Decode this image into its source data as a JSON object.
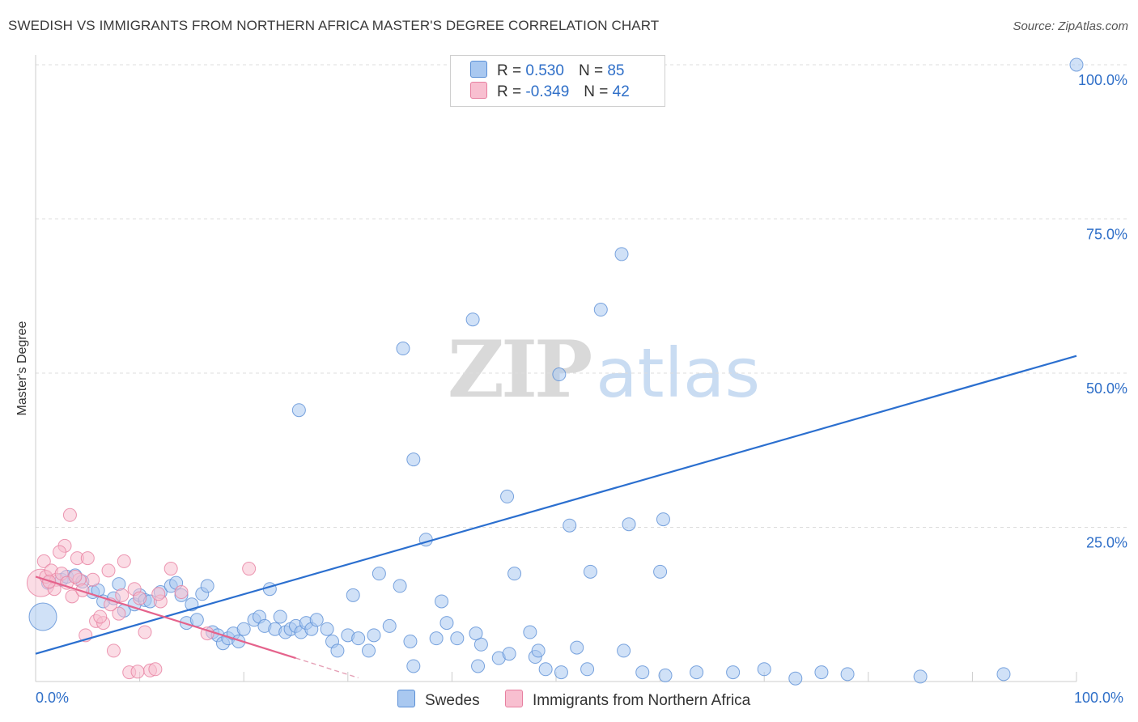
{
  "title": "SWEDISH VS IMMIGRANTS FROM NORTHERN AFRICA MASTER'S DEGREE CORRELATION CHART",
  "source": "Source: ZipAtlas.com",
  "watermark": {
    "zip": "ZIP",
    "atlas": "atlas"
  },
  "legend": {
    "r_label": "R =",
    "n_label": "N =",
    "series": [
      {
        "name": "Swedes",
        "r": "0.530",
        "n": "85",
        "color": "#a9c8f0",
        "edge": "#5b8fd6"
      },
      {
        "name": "Immigrants from Northern Africa",
        "r": "-0.349",
        "n": "42",
        "color": "#f8bfd0",
        "edge": "#e77fa0"
      }
    ]
  },
  "chart_data": {
    "type": "scatter",
    "title": "SWEDISH VS IMMIGRANTS FROM NORTHERN AFRICA MASTER'S DEGREE CORRELATION CHART",
    "xlabel": "",
    "ylabel": "Master's Degree",
    "xlim": [
      0,
      100
    ],
    "ylim": [
      0,
      100
    ],
    "x_ticks": [
      "0.0%",
      "100.0%"
    ],
    "y_ticks": [
      {
        "value": 25,
        "label": "25.0%"
      },
      {
        "value": 50,
        "label": "50.0%"
      },
      {
        "value": 75,
        "label": "75.0%"
      },
      {
        "value": 100,
        "label": "100.0%"
      }
    ],
    "series": [
      {
        "name": "Swedes",
        "color": "#5b8fd6",
        "fill": "#a9c8f0",
        "trend": {
          "x": [
            0,
            100
          ],
          "y": [
            4.5,
            52.8
          ]
        },
        "points": [
          {
            "x": 0.7,
            "y": 10.5,
            "big": true
          },
          {
            "x": 1.2,
            "y": 16.0
          },
          {
            "x": 2.5,
            "y": 16.5
          },
          {
            "x": 3.0,
            "y": 17.0
          },
          {
            "x": 3.8,
            "y": 17.2
          },
          {
            "x": 4.5,
            "y": 16.2
          },
          {
            "x": 5.5,
            "y": 14.5
          },
          {
            "x": 6.0,
            "y": 14.8
          },
          {
            "x": 6.5,
            "y": 13.0
          },
          {
            "x": 7.5,
            "y": 13.5
          },
          {
            "x": 8.0,
            "y": 15.8
          },
          {
            "x": 8.5,
            "y": 11.5
          },
          {
            "x": 9.5,
            "y": 12.5
          },
          {
            "x": 10.0,
            "y": 14.0
          },
          {
            "x": 10.5,
            "y": 13.2
          },
          {
            "x": 11.0,
            "y": 13.0
          },
          {
            "x": 12.0,
            "y": 14.5
          },
          {
            "x": 13.0,
            "y": 15.5
          },
          {
            "x": 13.5,
            "y": 16.0
          },
          {
            "x": 14.0,
            "y": 14.0
          },
          {
            "x": 14.5,
            "y": 9.5
          },
          {
            "x": 15.0,
            "y": 12.5
          },
          {
            "x": 15.5,
            "y": 10.0
          },
          {
            "x": 16.0,
            "y": 14.2
          },
          {
            "x": 16.5,
            "y": 15.5
          },
          {
            "x": 17.0,
            "y": 8.0
          },
          {
            "x": 17.5,
            "y": 7.5
          },
          {
            "x": 18.0,
            "y": 6.2
          },
          {
            "x": 18.5,
            "y": 7.0
          },
          {
            "x": 19.0,
            "y": 7.8
          },
          {
            "x": 19.5,
            "y": 6.5
          },
          {
            "x": 20.0,
            "y": 8.5
          },
          {
            "x": 21.0,
            "y": 10.0
          },
          {
            "x": 21.5,
            "y": 10.5
          },
          {
            "x": 22.0,
            "y": 9.0
          },
          {
            "x": 22.5,
            "y": 15.0
          },
          {
            "x": 23.0,
            "y": 8.5
          },
          {
            "x": 23.5,
            "y": 10.5
          },
          {
            "x": 24.0,
            "y": 8.0
          },
          {
            "x": 24.5,
            "y": 8.5
          },
          {
            "x": 25.0,
            "y": 9.0
          },
          {
            "x": 25.5,
            "y": 8.0
          },
          {
            "x": 26.0,
            "y": 9.5
          },
          {
            "x": 26.5,
            "y": 8.5
          },
          {
            "x": 27.0,
            "y": 10.0
          },
          {
            "x": 28.0,
            "y": 8.5
          },
          {
            "x": 28.5,
            "y": 6.5
          },
          {
            "x": 29.0,
            "y": 5.0
          },
          {
            "x": 30.0,
            "y": 7.5
          },
          {
            "x": 30.5,
            "y": 14.0
          },
          {
            "x": 31.0,
            "y": 7.0
          },
          {
            "x": 32.0,
            "y": 5.0
          },
          {
            "x": 32.5,
            "y": 7.5
          },
          {
            "x": 33.0,
            "y": 17.5
          },
          {
            "x": 34.0,
            "y": 9.0
          },
          {
            "x": 35.0,
            "y": 15.5
          },
          {
            "x": 36.0,
            "y": 6.5
          },
          {
            "x": 37.5,
            "y": 23.0
          },
          {
            "x": 38.5,
            "y": 7.0
          },
          {
            "x": 39.0,
            "y": 13.0
          },
          {
            "x": 39.5,
            "y": 9.5
          },
          {
            "x": 40.5,
            "y": 7.0
          },
          {
            "x": 42.5,
            "y": 2.5
          },
          {
            "x": 42.8,
            "y": 6.0
          },
          {
            "x": 44.5,
            "y": 3.8
          },
          {
            "x": 45.5,
            "y": 4.5
          },
          {
            "x": 46.0,
            "y": 17.5
          },
          {
            "x": 47.5,
            "y": 8.0
          },
          {
            "x": 48.0,
            "y": 4.0
          },
          {
            "x": 49.0,
            "y": 2.0
          },
          {
            "x": 50.5,
            "y": 1.5
          },
          {
            "x": 52.0,
            "y": 5.5
          },
          {
            "x": 53.0,
            "y": 2.0
          },
          {
            "x": 56.5,
            "y": 5.0
          },
          {
            "x": 57.0,
            "y": 25.5
          },
          {
            "x": 60.0,
            "y": 17.8
          },
          {
            "x": 60.5,
            "y": 1.0
          },
          {
            "x": 63.5,
            "y": 1.5
          },
          {
            "x": 67.0,
            "y": 1.5
          },
          {
            "x": 70.0,
            "y": 2.0
          },
          {
            "x": 73.0,
            "y": 0.5
          },
          {
            "x": 75.5,
            "y": 1.5
          },
          {
            "x": 78.0,
            "y": 1.2
          },
          {
            "x": 85.0,
            "y": 0.8
          },
          {
            "x": 93.0,
            "y": 1.2
          }
        ],
        "visible_points": [
          {
            "x": 25.3,
            "y": 44.0
          },
          {
            "x": 35.3,
            "y": 54.0
          },
          {
            "x": 36.3,
            "y": 36.0
          },
          {
            "x": 42.0,
            "y": 58.7
          },
          {
            "x": 45.3,
            "y": 30.0
          },
          {
            "x": 50.3,
            "y": 49.8
          },
          {
            "x": 51.3,
            "y": 25.3
          },
          {
            "x": 54.3,
            "y": 60.3
          },
          {
            "x": 56.3,
            "y": 69.3
          },
          {
            "x": 60.3,
            "y": 26.3
          },
          {
            "x": 53.3,
            "y": 17.8
          },
          {
            "x": 100,
            "y": 100
          },
          {
            "x": 48.3,
            "y": 5.0
          },
          {
            "x": 58.3,
            "y": 1.5
          },
          {
            "x": 42.3,
            "y": 7.8
          },
          {
            "x": 36.3,
            "y": 2.5
          }
        ]
      },
      {
        "name": "Immigrants from Northern Africa",
        "color": "#e77fa0",
        "fill": "#f8bfd0",
        "trend": {
          "x": [
            0,
            25
          ],
          "y": [
            17.0,
            3.8
          ]
        },
        "trend_dashed": {
          "x": [
            25,
            31
          ],
          "y": [
            3.8,
            0.6
          ]
        },
        "points": [
          {
            "x": 0.5,
            "y": 16.0,
            "big": true
          },
          {
            "x": 0.8,
            "y": 19.5
          },
          {
            "x": 1.0,
            "y": 17.0
          },
          {
            "x": 1.5,
            "y": 18.0
          },
          {
            "x": 2.0,
            "y": 16.5
          },
          {
            "x": 2.5,
            "y": 17.5
          },
          {
            "x": 3.0,
            "y": 16.0
          },
          {
            "x": 3.5,
            "y": 13.8
          },
          {
            "x": 4.0,
            "y": 20.0
          },
          {
            "x": 4.2,
            "y": 16.5
          },
          {
            "x": 4.8,
            "y": 7.5
          },
          {
            "x": 5.0,
            "y": 20.0
          },
          {
            "x": 5.5,
            "y": 16.5
          },
          {
            "x": 5.8,
            "y": 9.8
          },
          {
            "x": 6.5,
            "y": 9.5
          },
          {
            "x": 7.0,
            "y": 18.0
          },
          {
            "x": 7.5,
            "y": 5.0
          },
          {
            "x": 8.0,
            "y": 11.0
          },
          {
            "x": 8.5,
            "y": 19.5
          },
          {
            "x": 9.0,
            "y": 1.5
          },
          {
            "x": 9.5,
            "y": 15.0
          },
          {
            "x": 10.0,
            "y": 13.5
          },
          {
            "x": 10.5,
            "y": 8.0
          },
          {
            "x": 11.0,
            "y": 1.8
          },
          {
            "x": 11.5,
            "y": 2.0
          },
          {
            "x": 12.0,
            "y": 13.0
          },
          {
            "x": 13.0,
            "y": 18.3
          },
          {
            "x": 14.0,
            "y": 14.5
          },
          {
            "x": 16.5,
            "y": 7.8
          },
          {
            "x": 20.5,
            "y": 18.3
          },
          {
            "x": 3.3,
            "y": 27.0
          },
          {
            "x": 2.8,
            "y": 22.0
          },
          {
            "x": 2.3,
            "y": 21.0
          },
          {
            "x": 1.8,
            "y": 15.0
          },
          {
            "x": 6.2,
            "y": 10.5
          },
          {
            "x": 8.3,
            "y": 14.0
          },
          {
            "x": 7.2,
            "y": 12.5
          },
          {
            "x": 3.8,
            "y": 17.0
          },
          {
            "x": 4.5,
            "y": 14.8
          },
          {
            "x": 1.3,
            "y": 16.2
          },
          {
            "x": 9.8,
            "y": 1.6
          },
          {
            "x": 11.8,
            "y": 14.2
          }
        ]
      }
    ]
  }
}
